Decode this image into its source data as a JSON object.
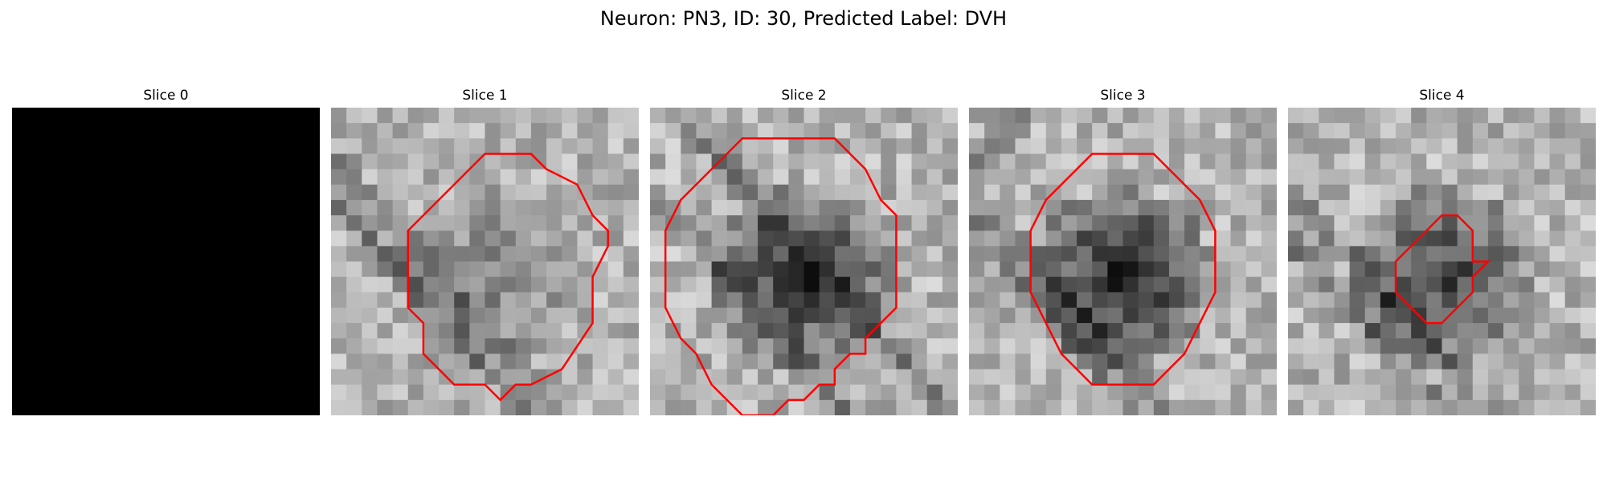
{
  "figure": {
    "title": "Neuron: PN3, ID: 30, Predicted Label: DVH",
    "panels": [
      {
        "label": "Slice 0",
        "blank": true,
        "blob": 0,
        "contrast": 0,
        "seed": 1,
        "roi": null
      },
      {
        "label": "Slice 1",
        "blank": false,
        "blob": 0.35,
        "contrast": 0.85,
        "seed": 11,
        "roi": [
          [
            13,
            3
          ],
          [
            14,
            4
          ],
          [
            16,
            5
          ],
          [
            17,
            7
          ],
          [
            18,
            8
          ],
          [
            18,
            9
          ],
          [
            17,
            11
          ],
          [
            17,
            14
          ],
          [
            15,
            17
          ],
          [
            13,
            18
          ],
          [
            12,
            18
          ],
          [
            11,
            19
          ],
          [
            10,
            18
          ],
          [
            8,
            18
          ],
          [
            7,
            17
          ],
          [
            6,
            16
          ],
          [
            6,
            14
          ],
          [
            5,
            13
          ],
          [
            5,
            11
          ],
          [
            5,
            8
          ],
          [
            6,
            7
          ],
          [
            7,
            6
          ],
          [
            8,
            5
          ],
          [
            9,
            4
          ],
          [
            10,
            3
          ]
        ],
        "roi_color": "#ff0000"
      },
      {
        "label": "Slice 2",
        "blank": false,
        "blob": 0.85,
        "contrast": 0.9,
        "seed": 23,
        "roi": [
          [
            12,
            2
          ],
          [
            13,
            3
          ],
          [
            14,
            4
          ],
          [
            15,
            6
          ],
          [
            16,
            7
          ],
          [
            16,
            10
          ],
          [
            16,
            13
          ],
          [
            15,
            14
          ],
          [
            14,
            15
          ],
          [
            14,
            16
          ],
          [
            13,
            16
          ],
          [
            12,
            17
          ],
          [
            12,
            18
          ],
          [
            11,
            18
          ],
          [
            10,
            19
          ],
          [
            9,
            19
          ],
          [
            8,
            20
          ],
          [
            6,
            20
          ],
          [
            5,
            19
          ],
          [
            4,
            18
          ],
          [
            3,
            16
          ],
          [
            2,
            15
          ],
          [
            1,
            13
          ],
          [
            1,
            11
          ],
          [
            1,
            8
          ],
          [
            2,
            6
          ],
          [
            3,
            5
          ],
          [
            4,
            4
          ],
          [
            5,
            3
          ],
          [
            6,
            2
          ],
          [
            8,
            2
          ],
          [
            10,
            2
          ]
        ],
        "roi_color": "#ff0000"
      },
      {
        "label": "Slice 3",
        "blank": false,
        "blob": 1.0,
        "contrast": 0.85,
        "seed": 37,
        "roi": [
          [
            12,
            3
          ],
          [
            13,
            4
          ],
          [
            14,
            5
          ],
          [
            15,
            6
          ],
          [
            16,
            8
          ],
          [
            16,
            10
          ],
          [
            16,
            12
          ],
          [
            15,
            14
          ],
          [
            14,
            16
          ],
          [
            13,
            17
          ],
          [
            12,
            18
          ],
          [
            10,
            18
          ],
          [
            8,
            18
          ],
          [
            7,
            17
          ],
          [
            6,
            16
          ],
          [
            5,
            14
          ],
          [
            4,
            12
          ],
          [
            4,
            10
          ],
          [
            4,
            8
          ],
          [
            5,
            6
          ],
          [
            6,
            5
          ],
          [
            7,
            4
          ],
          [
            8,
            3
          ],
          [
            10,
            3
          ]
        ],
        "roi_color": "#ff0000"
      },
      {
        "label": "Slice 4",
        "blank": false,
        "blob": 0.75,
        "contrast": 0.9,
        "seed": 53,
        "roi": [
          [
            11,
            7
          ],
          [
            12,
            8
          ],
          [
            12,
            10
          ],
          [
            13,
            10
          ],
          [
            12,
            11
          ],
          [
            12,
            12
          ],
          [
            11,
            13
          ],
          [
            10,
            14
          ],
          [
            9,
            14
          ],
          [
            8,
            13
          ],
          [
            7,
            12
          ],
          [
            7,
            11
          ],
          [
            7,
            10
          ],
          [
            8,
            9
          ],
          [
            9,
            8
          ],
          [
            10,
            7
          ]
        ],
        "roi_color": "#ff0000"
      }
    ]
  }
}
